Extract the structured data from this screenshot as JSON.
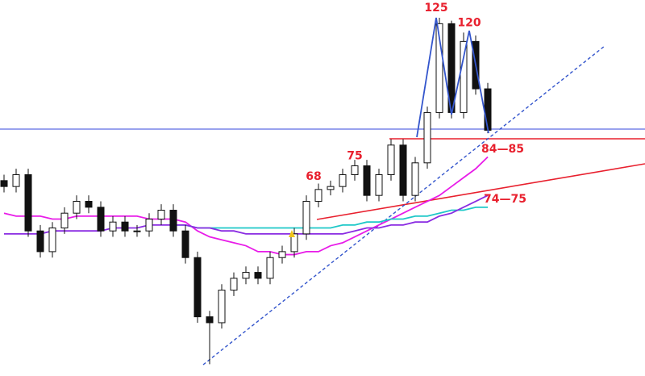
{
  "chart_data": {
    "type": "candlestick",
    "ylim": [
      4,
      131
    ],
    "open": [
      70,
      68,
      72,
      53,
      46,
      54,
      59,
      63,
      61,
      53,
      56,
      53,
      53,
      57,
      60,
      53,
      44,
      24,
      22,
      33,
      37,
      39,
      37,
      44,
      46,
      52,
      63,
      67,
      68,
      72,
      75,
      65,
      72,
      82,
      65,
      76,
      93,
      123,
      93,
      117,
      101
    ],
    "high": [
      72,
      74,
      74,
      55,
      56,
      61,
      65,
      65,
      63,
      58,
      58,
      55,
      59,
      62,
      62,
      55,
      46,
      26,
      35,
      39,
      41,
      41,
      46,
      48,
      54,
      65,
      69,
      70,
      74,
      77,
      77,
      74,
      84,
      84,
      78,
      95,
      125,
      124,
      120,
      119,
      103
    ],
    "low": [
      66,
      66,
      51,
      44,
      44,
      52,
      57,
      59,
      51,
      51,
      51,
      51,
      51,
      55,
      51,
      42,
      22,
      8,
      20,
      31,
      35,
      35,
      35,
      42,
      44,
      50,
      61,
      65,
      66,
      70,
      63,
      63,
      70,
      63,
      63,
      74,
      91,
      91,
      91,
      99,
      86
    ],
    "close": [
      68,
      72,
      53,
      46,
      54,
      59,
      63,
      61,
      53,
      56,
      53,
      53,
      57,
      60,
      53,
      44,
      24,
      22,
      33,
      37,
      39,
      37,
      44,
      46,
      52,
      63,
      67,
      68,
      72,
      75,
      65,
      72,
      82,
      65,
      76,
      93,
      123,
      93,
      117,
      101,
      87
    ],
    "series": [
      {
        "color": "#e81ce8",
        "values": [
          59,
          58,
          58,
          58,
          57,
          57,
          58,
          58,
          58,
          58,
          58,
          58,
          57,
          57,
          57,
          56,
          53,
          51,
          50,
          49,
          48,
          46,
          46,
          45,
          45,
          46,
          46,
          48,
          49,
          51,
          53,
          55,
          57,
          59,
          61,
          63,
          65,
          68,
          71,
          74,
          78
        ]
      },
      {
        "color": "#1ec8c8",
        "values": [
          null,
          null,
          null,
          null,
          null,
          null,
          null,
          null,
          null,
          null,
          null,
          null,
          null,
          null,
          55,
          55,
          54,
          54,
          54,
          54,
          54,
          54,
          54,
          54,
          54,
          54,
          54,
          54,
          55,
          55,
          56,
          56,
          57,
          57,
          58,
          58,
          59,
          60,
          60,
          61,
          61
        ]
      },
      {
        "color": "#8a2be2",
        "values": [
          52,
          52,
          52,
          52,
          53,
          53,
          53,
          53,
          53,
          54,
          54,
          54,
          55,
          55,
          55,
          55,
          54,
          54,
          53,
          53,
          52,
          52,
          52,
          52,
          52,
          52,
          52,
          52,
          52,
          53,
          54,
          54,
          55,
          55,
          56,
          56,
          58,
          59,
          61,
          63,
          65
        ]
      }
    ],
    "annotations": [
      125,
      120,
      75,
      68
    ],
    "zones": [
      "84—85",
      "74—75"
    ]
  }
}
